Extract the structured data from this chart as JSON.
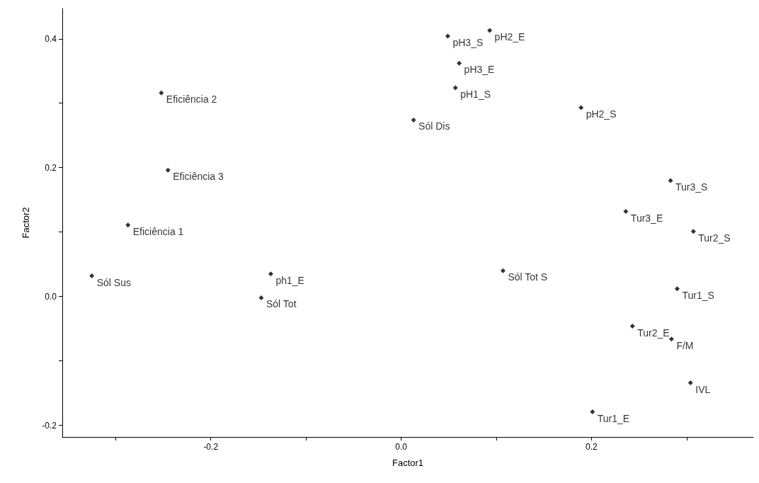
{
  "chart_data": {
    "type": "scatter",
    "xlabel": "Factor1",
    "ylabel": "Factor2",
    "marker": "diamond",
    "grid": false,
    "xlim": [
      -0.356,
      0.37
    ],
    "xticks": [
      {
        "value": -0.3,
        "label": null
      },
      -0.2,
      {
        "value": -0.1,
        "label": null
      },
      {
        "value": 0,
        "label": "0.0"
      },
      {
        "value": 0.1,
        "label": null
      },
      0.2,
      {
        "value": 0.3,
        "label": null
      }
    ],
    "ylim": [
      -0.218,
      0.447
    ],
    "yticks": [
      -0.2,
      {
        "value": -0.1,
        "label": null
      },
      {
        "value": 0,
        "label": "0.0"
      },
      {
        "value": 0.1,
        "label": null
      },
      0.2,
      {
        "value": 0.3,
        "label": null
      },
      0.4
    ],
    "series": [
      {
        "color": "#000000",
        "x": [
          0.049,
          0.093,
          0.061,
          0.057,
          0.013,
          0.189,
          -0.252,
          -0.245,
          -0.287,
          -0.325,
          -0.137,
          -0.147,
          0.107,
          0.283,
          0.236,
          0.307,
          0.29,
          0.243,
          0.284,
          0.304,
          0.201
        ],
        "values": [
          0.404,
          0.413,
          0.362,
          0.324,
          0.274,
          0.293,
          0.316,
          0.196,
          0.111,
          0.032,
          0.035,
          -0.002,
          0.04,
          0.18,
          0.132,
          0.101,
          0.012,
          -0.046,
          -0.066,
          -0.134,
          -0.179
        ]
      }
    ],
    "annotations": [
      {
        "text": "pH3_S",
        "x": 0.049,
        "y": 0.404
      },
      {
        "text": "pH2_E",
        "x": 0.093,
        "y": 0.413
      },
      {
        "text": "pH3_E",
        "x": 0.061,
        "y": 0.362
      },
      {
        "text": "pH1_S",
        "x": 0.057,
        "y": 0.324
      },
      {
        "text": "Sól Dis",
        "x": 0.013,
        "y": 0.274
      },
      {
        "text": "pH2_S",
        "x": 0.189,
        "y": 0.293
      },
      {
        "text": "Eficiência 2",
        "x": -0.252,
        "y": 0.316
      },
      {
        "text": "Eficiência 3",
        "x": -0.245,
        "y": 0.196
      },
      {
        "text": "Eficiência 1",
        "x": -0.287,
        "y": 0.111
      },
      {
        "text": "Sól Sus",
        "x": -0.325,
        "y": 0.032
      },
      {
        "text": "ph1_E",
        "x": -0.137,
        "y": 0.035
      },
      {
        "text": "Sól Tot",
        "x": -0.147,
        "y": -0.002
      },
      {
        "text": "Sól Tot S",
        "x": 0.107,
        "y": 0.04
      },
      {
        "text": "Tur3_S",
        "x": 0.283,
        "y": 0.18
      },
      {
        "text": "Tur3_E",
        "x": 0.236,
        "y": 0.132
      },
      {
        "text": "Tur2_S",
        "x": 0.307,
        "y": 0.101
      },
      {
        "text": "Tur1_S",
        "x": 0.29,
        "y": 0.012
      },
      {
        "text": "Tur2_E",
        "x": 0.243,
        "y": -0.046
      },
      {
        "text": "F/M",
        "x": 0.284,
        "y": -0.066
      },
      {
        "text": "IVL",
        "x": 0.304,
        "y": -0.134
      },
      {
        "text": "Tur1_E",
        "x": 0.201,
        "y": -0.179
      }
    ]
  }
}
